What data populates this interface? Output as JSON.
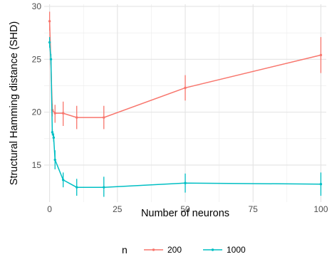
{
  "chart_data": {
    "type": "line",
    "xlabel": "Number of neurons",
    "ylabel": "Structural Hamming distance (SHD)",
    "xlim": [
      -2,
      102
    ],
    "ylim": [
      11.5,
      30.2
    ],
    "x_ticks": [
      0,
      25,
      50,
      75,
      100
    ],
    "y_ticks": [
      15,
      20,
      25,
      30
    ],
    "grid": true,
    "legend": {
      "title": "n",
      "position": "bottom",
      "entries": [
        "200",
        "1000"
      ]
    },
    "series": [
      {
        "name": "200",
        "color": "#F8766D",
        "x": [
          0,
          1,
          2,
          5,
          10,
          20,
          50,
          100
        ],
        "y": [
          28.6,
          20.2,
          19.9,
          19.9,
          19.5,
          19.5,
          22.3,
          25.4
        ],
        "y_low": [
          27.7,
          19.6,
          19.0,
          18.7,
          18.4,
          18.4,
          21.1,
          23.7
        ],
        "y_high": [
          29.5,
          20.8,
          20.7,
          21.0,
          20.6,
          20.6,
          23.5,
          27.1
        ]
      },
      {
        "name": "1000",
        "color": "#00BFC4",
        "x": [
          0,
          0.5,
          1,
          1.5,
          2,
          5,
          10,
          20,
          50,
          100
        ],
        "y": [
          26.6,
          25.0,
          18.1,
          17.6,
          15.5,
          13.6,
          12.9,
          12.9,
          13.3,
          13.2
        ],
        "y_low": [
          26.1,
          24.5,
          17.8,
          17.2,
          14.6,
          12.9,
          12.1,
          12.0,
          12.4,
          12.1
        ],
        "y_high": [
          27.1,
          25.5,
          18.4,
          18.0,
          16.4,
          14.3,
          13.7,
          13.9,
          14.2,
          14.3
        ]
      }
    ]
  }
}
